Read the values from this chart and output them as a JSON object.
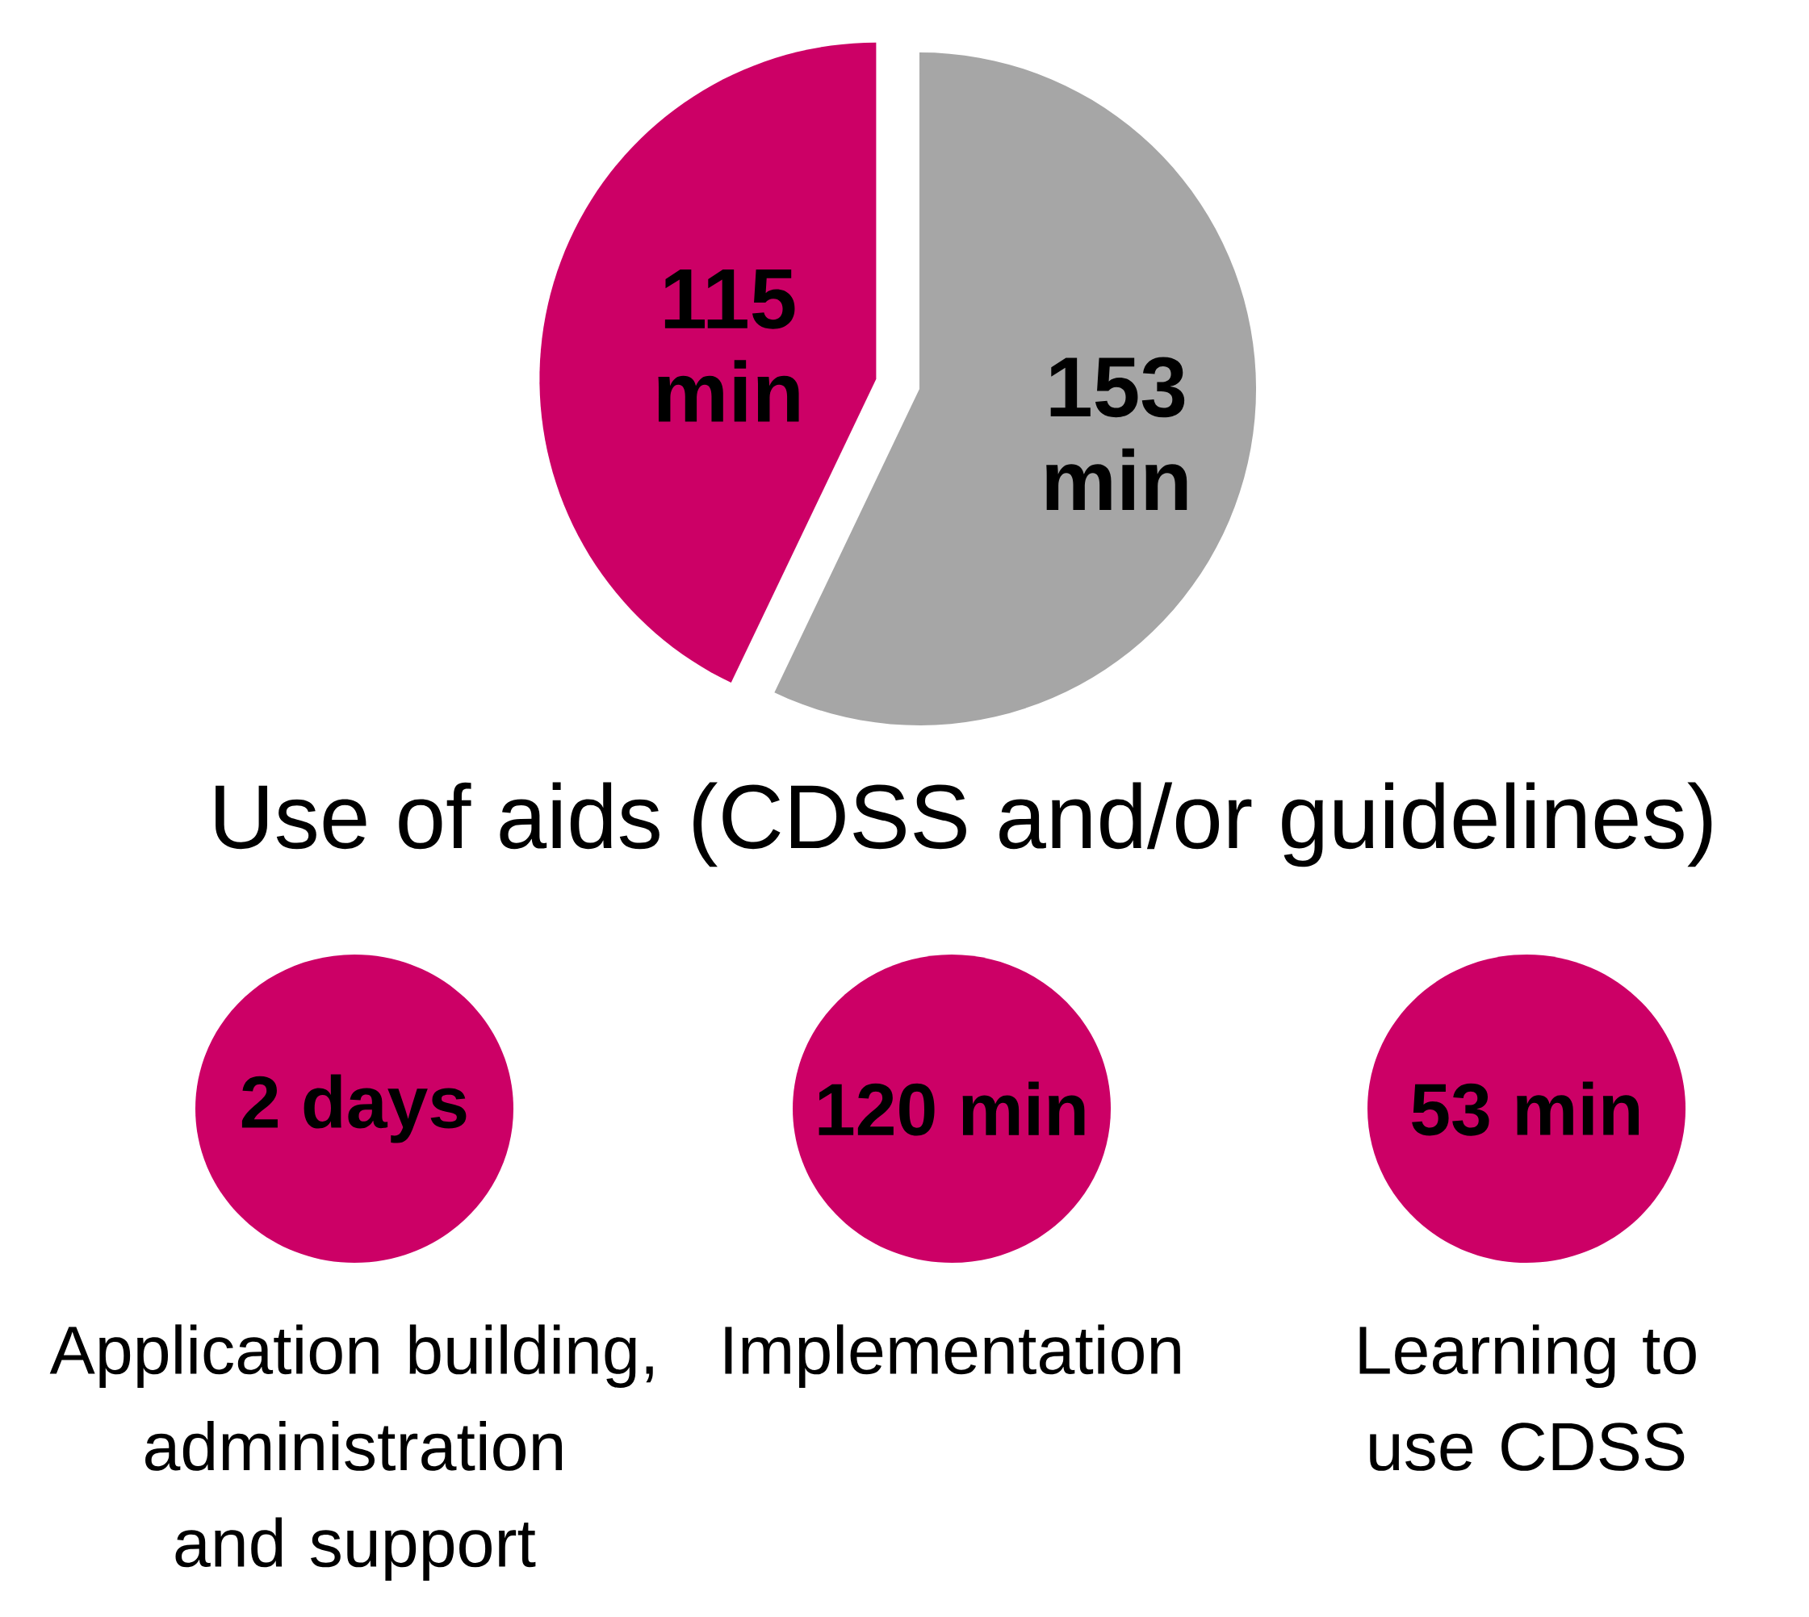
{
  "chart_data": [
    {
      "type": "pie",
      "title": "Use of aids (CDSS and/or guidelines)",
      "categories": [
        null,
        null
      ],
      "values": [
        115,
        153
      ],
      "colors": [
        "#cc0066",
        "#a6a6a6"
      ],
      "value_labels": [
        "115 min",
        "153 min"
      ]
    },
    {
      "type": "other",
      "categories": [
        "Application building, administration and support",
        "Implementation",
        "Learning to use CDSS"
      ],
      "value_labels": [
        "2 days",
        "120 min",
        "53 min"
      ],
      "colors": [
        "#cc0066",
        "#cc0066",
        "#cc0066"
      ]
    }
  ]
}
